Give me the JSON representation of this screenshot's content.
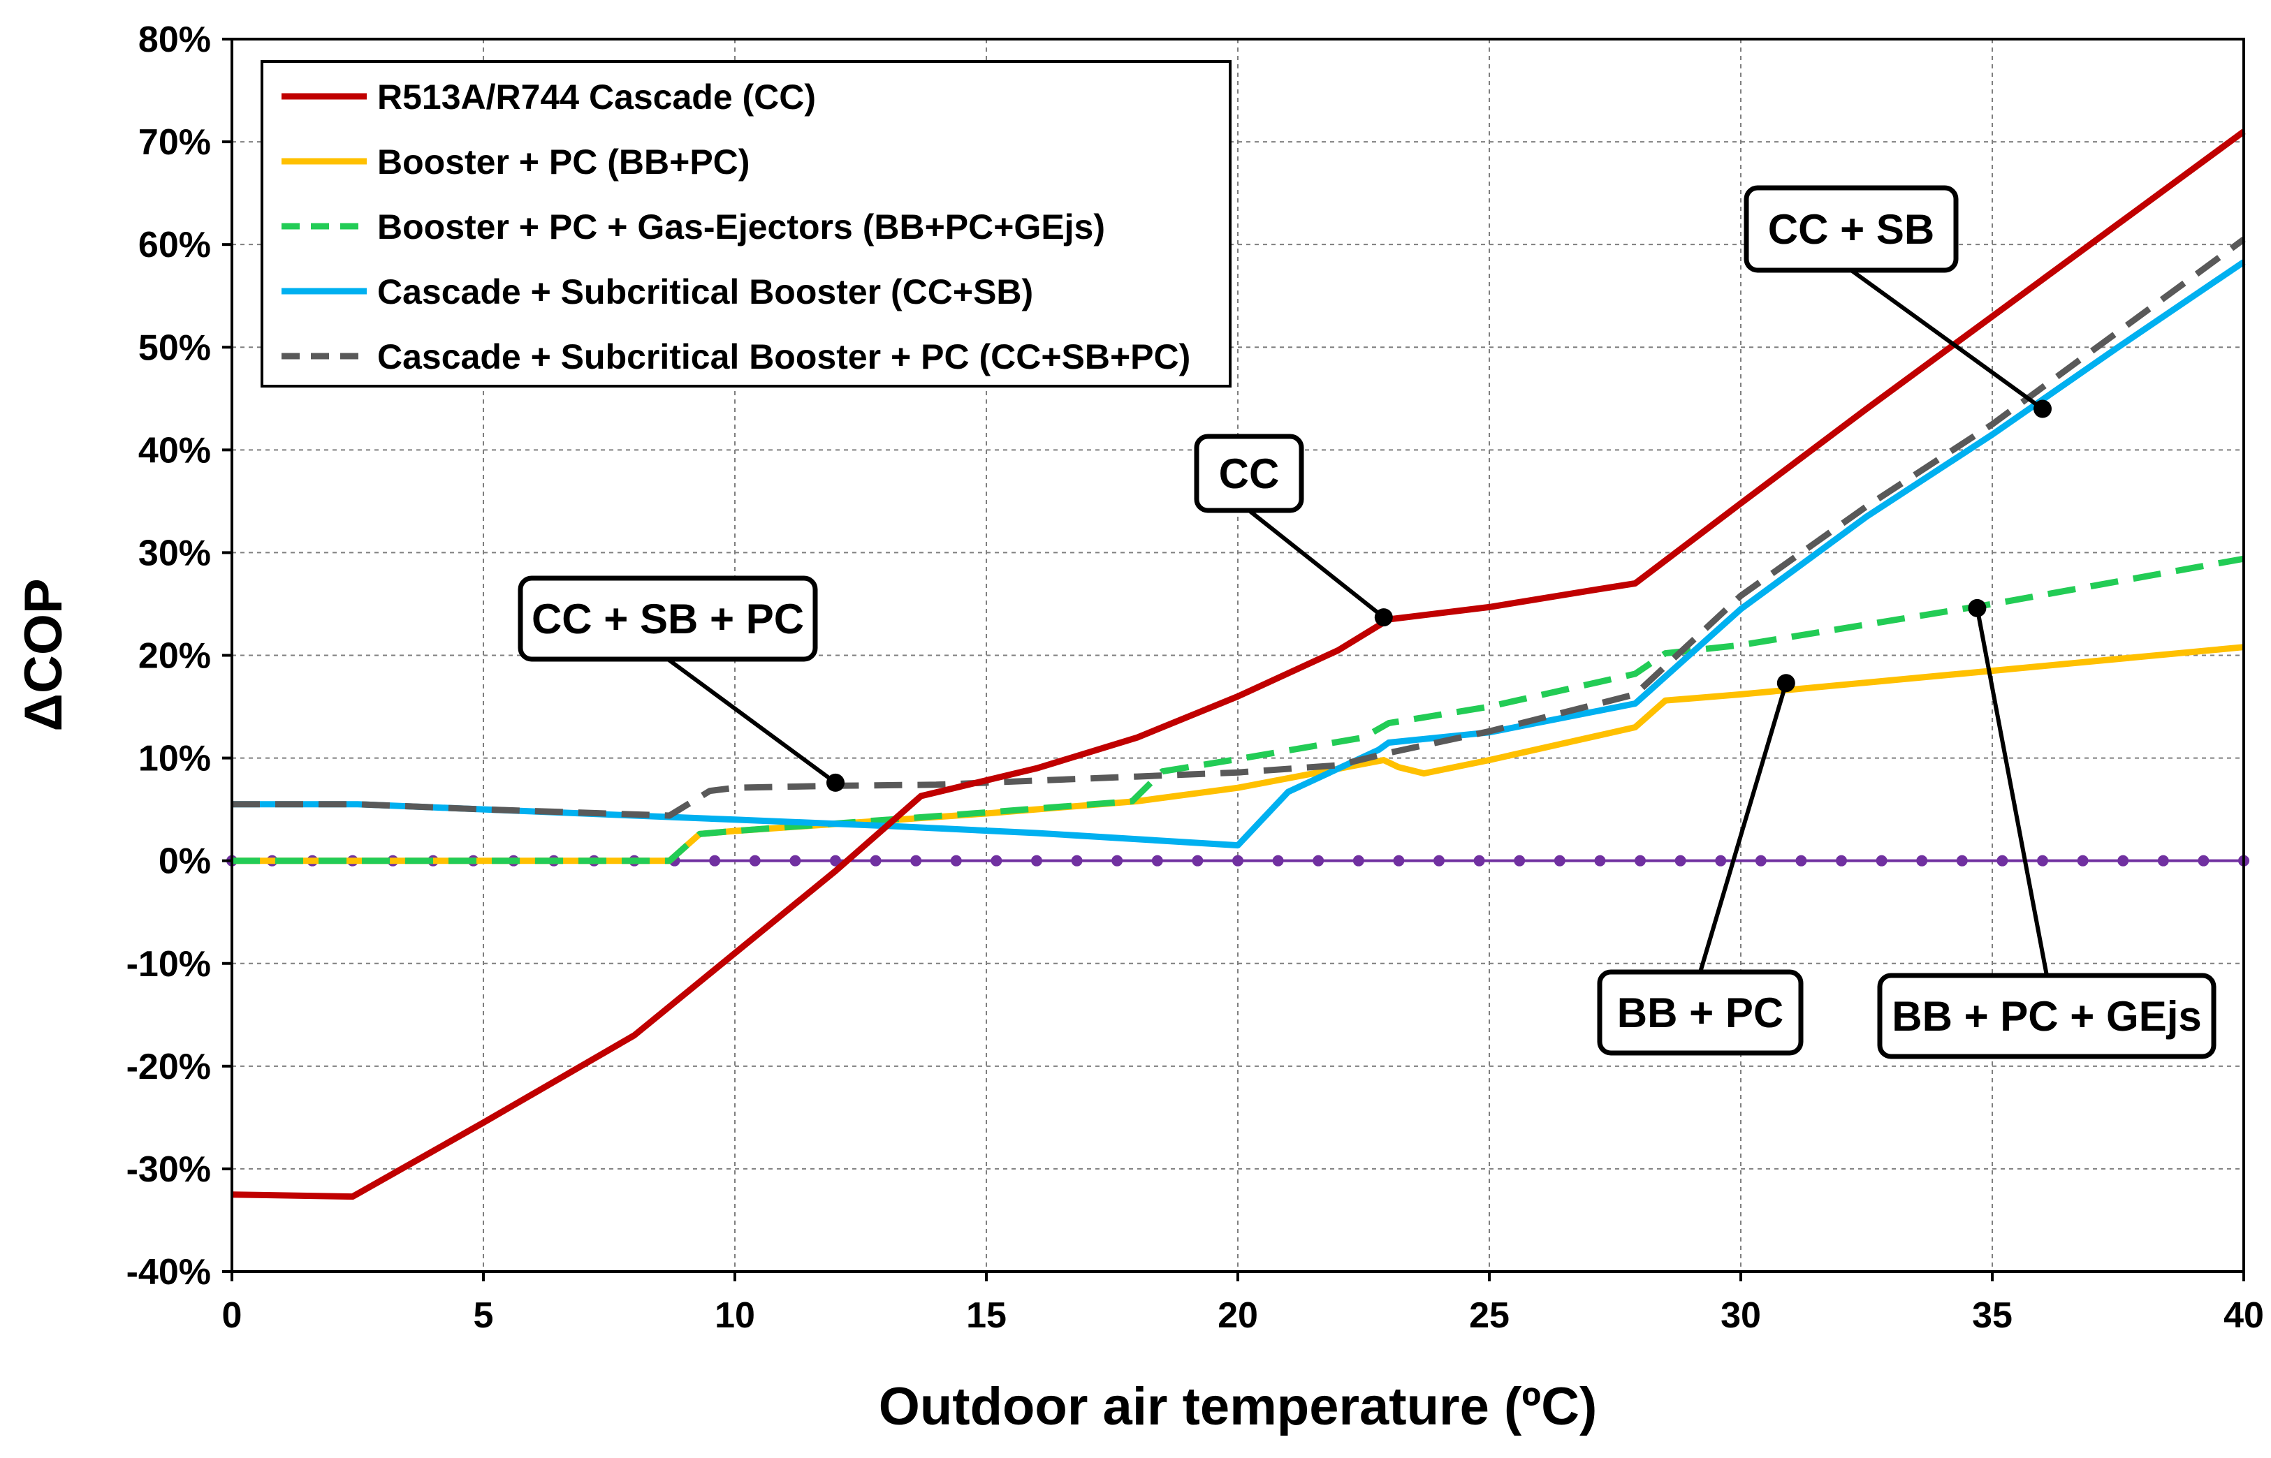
{
  "chart_data": {
    "type": "line",
    "title": "",
    "xlabel": "Outdoor air temperature (ºC)",
    "ylabel": "ΔCOP",
    "xlim": [
      0,
      40
    ],
    "ylim": [
      -40,
      80
    ],
    "x_ticks": [
      0,
      5,
      10,
      15,
      20,
      25,
      30,
      35,
      40
    ],
    "x_tick_labels": [
      "0",
      "5",
      "10",
      "15",
      "20",
      "25",
      "30",
      "35",
      "40"
    ],
    "y_ticks": [
      -40,
      -30,
      -20,
      -10,
      0,
      10,
      20,
      30,
      40,
      50,
      60,
      70,
      80
    ],
    "y_tick_labels": [
      "-40%",
      "-30%",
      "-20%",
      "-10%",
      "0%",
      "10%",
      "20%",
      "30%",
      "40%",
      "50%",
      "60%",
      "70%",
      "80%"
    ],
    "grid": true,
    "legend_position": "top-left",
    "series": [
      {
        "name": "R513A/R744 Cascade (CC)",
        "color": "#c00000",
        "style": "solid",
        "x": [
          0,
          2.4,
          5,
          8,
          10,
          12,
          13.7,
          16,
          18,
          20,
          22,
          23,
          25,
          27,
          27.9,
          30,
          32.5,
          35,
          37.5,
          40
        ],
        "y": [
          -32.5,
          -32.7,
          -25.5,
          -17,
          -9,
          -1,
          6.3,
          9,
          12,
          16,
          20.5,
          23.5,
          24.7,
          26.3,
          27,
          34.8,
          44,
          53,
          62,
          71
        ]
      },
      {
        "name": "Booster + PC (BB+PC)",
        "color": "#ffc000",
        "style": "solid",
        "x": [
          0,
          8.7,
          9.3,
          10,
          15,
          18,
          20,
          22.9,
          23.2,
          23.7,
          25,
          27.9,
          28.5,
          30,
          35,
          40
        ],
        "y": [
          0,
          0,
          2.6,
          2.9,
          4.6,
          5.8,
          7.1,
          9.8,
          9.1,
          8.5,
          9.8,
          13,
          15.6,
          16.2,
          18.5,
          20.8
        ]
      },
      {
        "name": "Booster + PC + Gas-Ejectors (BB+PC+GEjs)",
        "color": "#22cc55",
        "style": "dashed",
        "x": [
          0,
          8.7,
          9.3,
          10,
          15,
          17.9,
          18.5,
          20,
          22.5,
          23,
          25,
          27.9,
          28.5,
          30,
          35,
          40
        ],
        "y": [
          0,
          0,
          2.6,
          2.9,
          4.7,
          5.8,
          8.7,
          9.9,
          12,
          13.4,
          15,
          18.2,
          20.2,
          21,
          25,
          29.4
        ]
      },
      {
        "name": "Cascade + Subcritical Booster (CC+SB)",
        "color": "#00b0f0",
        "style": "solid",
        "x": [
          0,
          2.5,
          5,
          8,
          10,
          13,
          16,
          20,
          21,
          22.8,
          23,
          25,
          27.9,
          30,
          32.5,
          35,
          37.5,
          40
        ],
        "y": [
          5.5,
          5.5,
          5,
          4.4,
          4,
          3.4,
          2.7,
          1.5,
          6.7,
          10.8,
          11.5,
          12.5,
          15.3,
          24.5,
          33.5,
          41.5,
          50,
          58.3
        ]
      },
      {
        "name": "Cascade + Subcritical Booster + PC (CC+SB+PC)",
        "color": "#595959",
        "style": "dashed",
        "x": [
          0,
          2.5,
          5,
          8.7,
          9.5,
          10,
          12,
          14,
          16,
          18,
          20,
          22,
          23,
          25,
          27.9,
          30,
          32.5,
          35,
          37.5,
          40
        ],
        "y": [
          5.5,
          5.5,
          5,
          4.4,
          6.8,
          7.1,
          7.3,
          7.4,
          7.8,
          8.2,
          8.6,
          9.3,
          10.5,
          12.6,
          16.2,
          25.8,
          34.5,
          42.5,
          51.5,
          60.5
        ]
      },
      {
        "name": "",
        "color": "#7030a0",
        "style": "dotted",
        "x": [
          0,
          40
        ],
        "y": [
          0,
          0
        ]
      }
    ],
    "annotations": [
      {
        "text": "CC",
        "x": 22.9,
        "y": 23.7
      },
      {
        "text": "CC + SB",
        "x": 36.0,
        "y": 44.0
      },
      {
        "text": "CC + SB + PC",
        "x": 12.0,
        "y": 7.6
      },
      {
        "text": "BB + PC",
        "x": 30.9,
        "y": 17.3
      },
      {
        "text": "BB + PC + GEjs",
        "x": 34.7,
        "y": 24.6
      }
    ]
  }
}
